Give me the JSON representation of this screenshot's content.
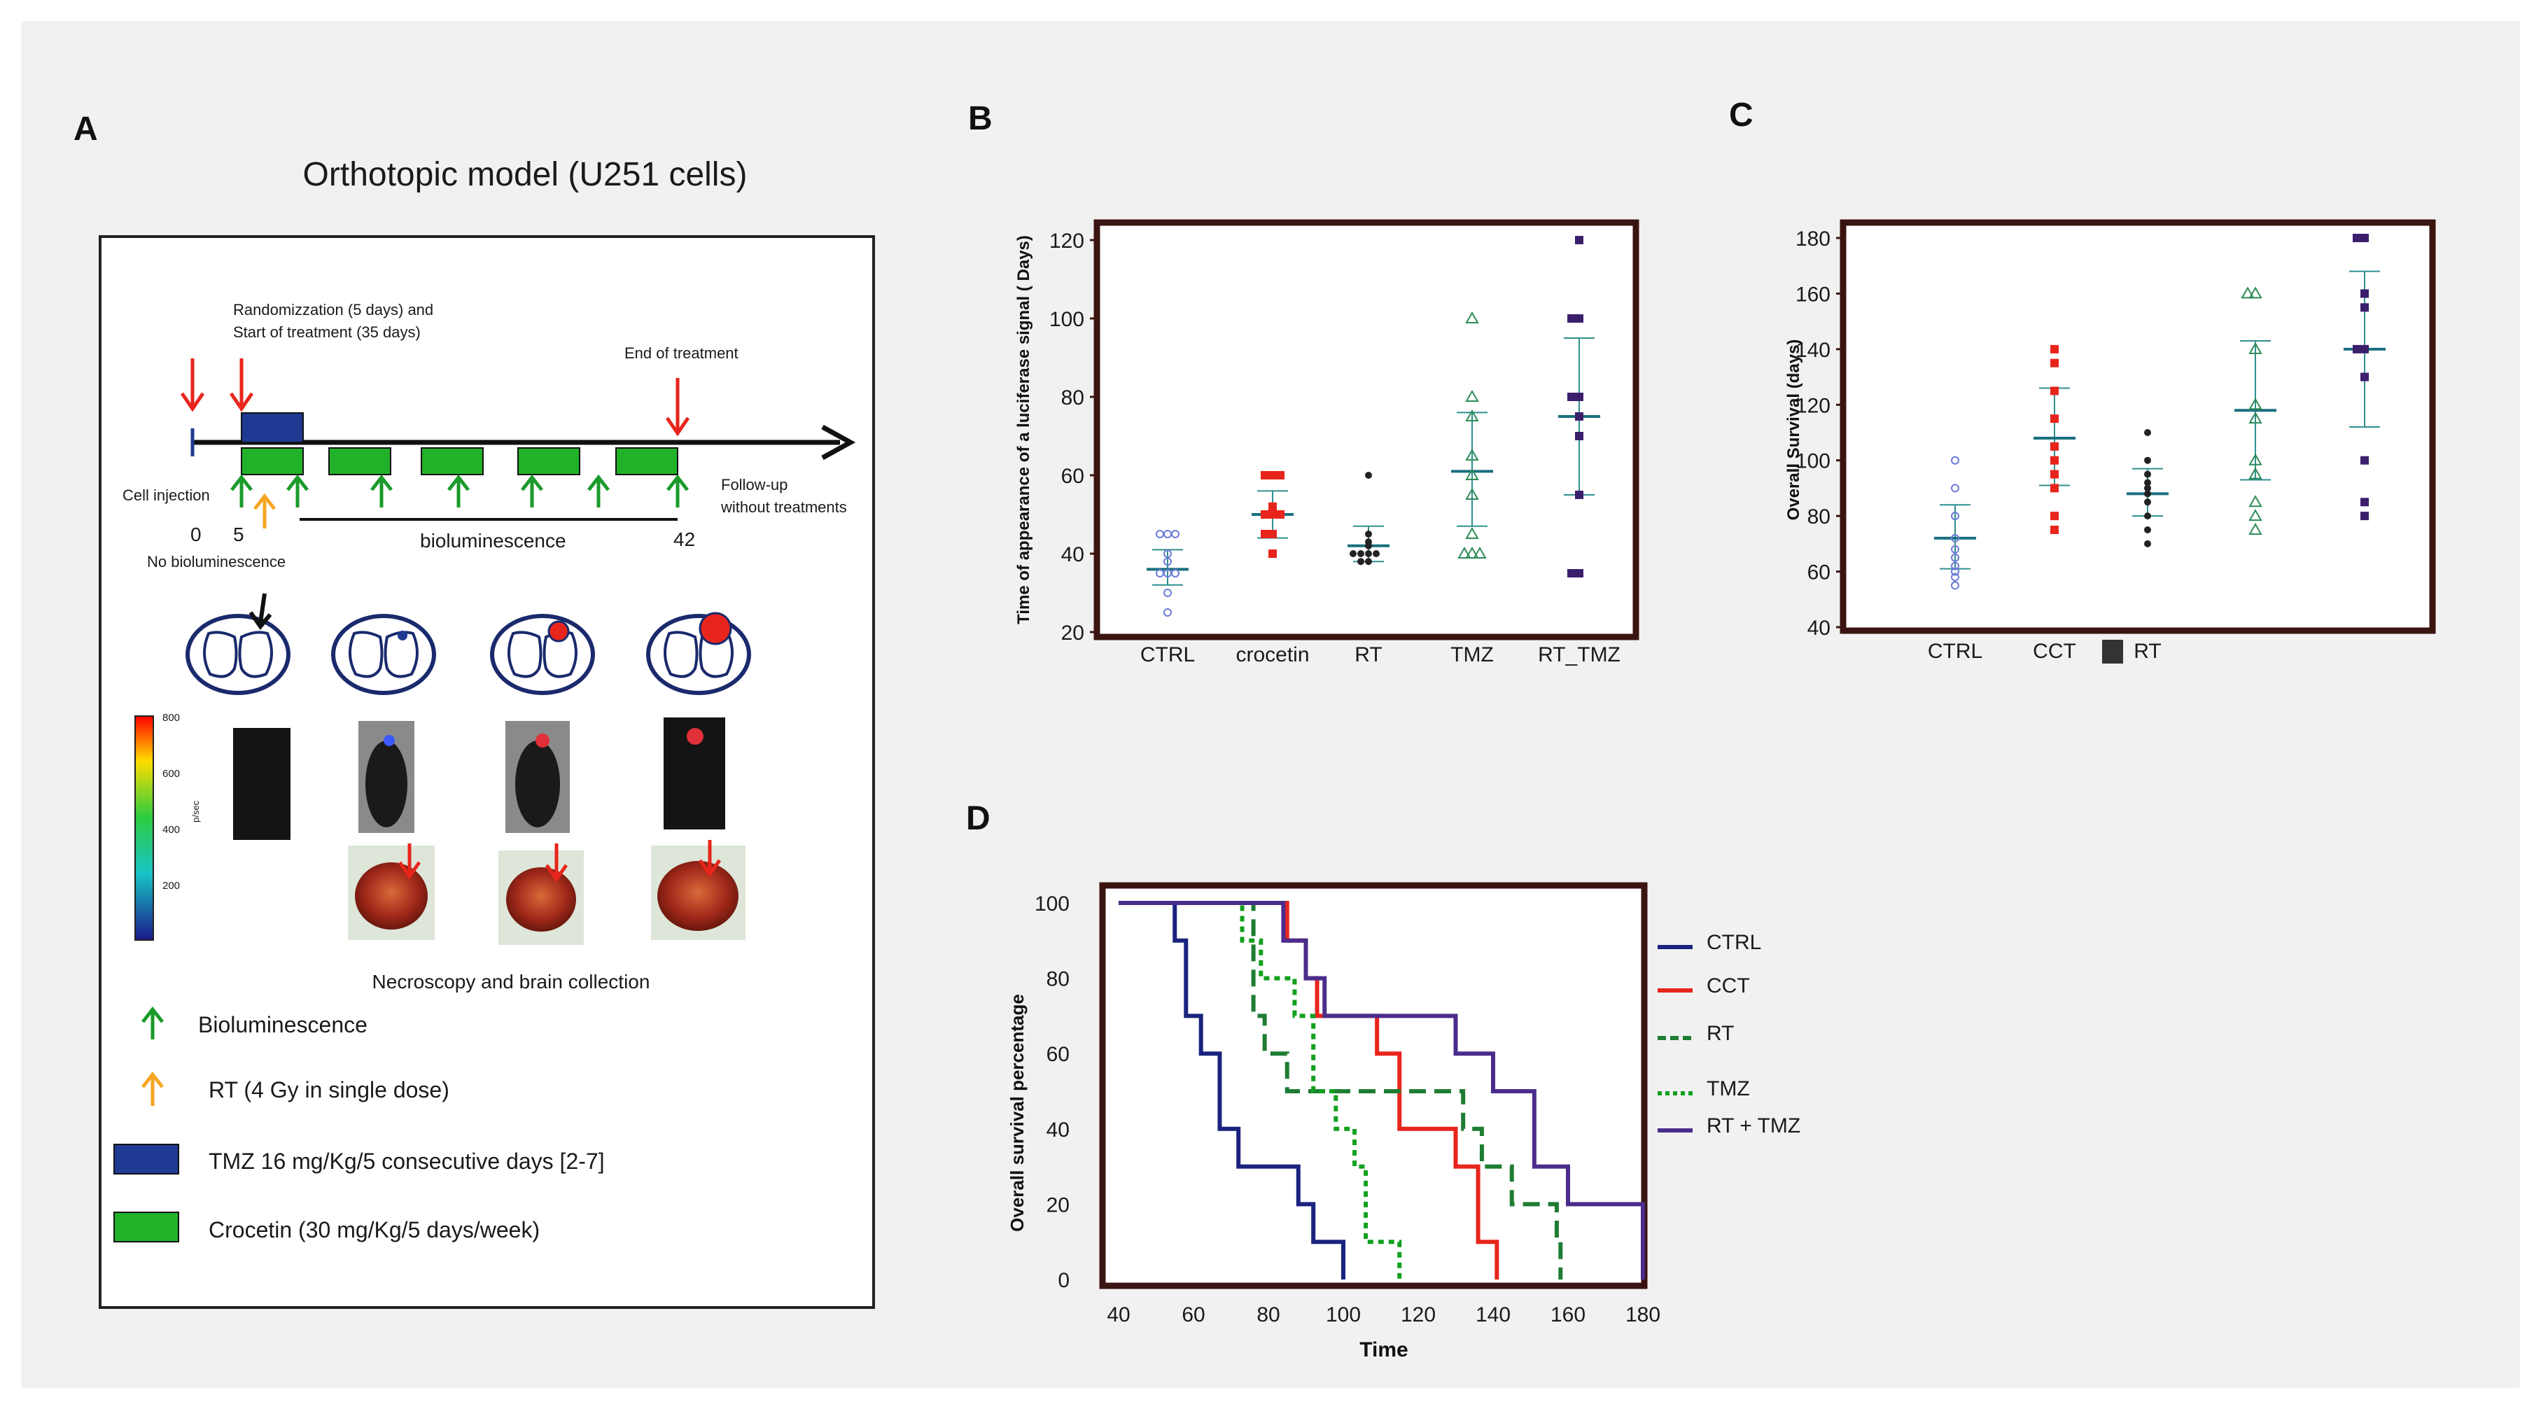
{
  "panel_letters": {
    "a": "A",
    "b": "B",
    "c": "C",
    "d": "D"
  },
  "panel_a": {
    "title": "Orthotopic model (U251 cells)",
    "randomization_label_line1": "Randomizzation  (5 days) and",
    "randomization_label_line2": "Start of treatment (35 days)",
    "end_label": "End of treatment",
    "cell_injection_label": "Cell injection",
    "day0": "0",
    "day5": "5",
    "day42": "42",
    "no_biolum_label": "No bioluminescence",
    "biolum_bar_label": "bioluminescence",
    "followup_line1": "Follow-up",
    "followup_line2": "without treatments",
    "colorbar_ticks": [
      "800",
      "600",
      "400",
      "200"
    ],
    "colorbar_unit": "p/sec",
    "necroscopy_label": "Necroscopy and brain collection",
    "legend": [
      {
        "label": "Bioluminescence"
      },
      {
        "label": "RT (4 Gy in single dose)"
      },
      {
        "label": "TMZ 16 mg/Kg/5 consecutive days [2-7]"
      },
      {
        "label": "Crocetin (30 mg/Kg/5 days/week)"
      }
    ],
    "colors": {
      "red": "#e8251c",
      "green": "#1a9a2a",
      "orange": "#f5a623",
      "blue": "#1f3a93",
      "box_green": "#22b22a"
    }
  },
  "chart_data": [
    {
      "id": "B",
      "type": "scatter",
      "categories": [
        "CTRL",
        "crocetin",
        "RT",
        "TMZ",
        "RT_TMZ"
      ],
      "ylabel": "Time of appearance of a  luciferase signal ( Days)",
      "xlabel": "",
      "ylim": [
        20,
        120
      ],
      "yticks": [
        20,
        40,
        60,
        80,
        100,
        120
      ],
      "points": [
        [
          45,
          45,
          45,
          40,
          38,
          35,
          35,
          35,
          30,
          25
        ],
        [
          60,
          60,
          60,
          52,
          50,
          50,
          50,
          45,
          45,
          40
        ],
        [
          60,
          45,
          43,
          42,
          40,
          40,
          40,
          40,
          38,
          38
        ],
        [
          100,
          80,
          75,
          65,
          60,
          55,
          45,
          40,
          40,
          40
        ],
        [
          120,
          100,
          100,
          80,
          80,
          75,
          70,
          55,
          35,
          35
        ]
      ],
      "mean": [
        36,
        50,
        42,
        61,
        75
      ],
      "upper": [
        41,
        56,
        47,
        76,
        95
      ],
      "lower": [
        32,
        44,
        38,
        47,
        55
      ],
      "marker_colors": [
        "#6b7bd6",
        "#e8251c",
        "#222222",
        "#2e8b57",
        "#3b1f6b"
      ]
    },
    {
      "id": "C",
      "type": "scatter",
      "categories": [
        "CTRL",
        "CCT",
        "RT",
        "",
        ""
      ],
      "ylabel": "Overall Survival (days)",
      "xlabel": "",
      "ylim": [
        40,
        180
      ],
      "yticks": [
        40,
        60,
        80,
        100,
        120,
        140,
        160,
        180
      ],
      "points": [
        [
          100,
          90,
          80,
          72,
          68,
          65,
          62,
          60,
          58,
          55
        ],
        [
          140,
          135,
          125,
          115,
          105,
          100,
          95,
          90,
          80,
          75
        ],
        [
          110,
          100,
          95,
          92,
          90,
          88,
          85,
          80,
          75,
          70
        ],
        [
          160,
          160,
          140,
          120,
          115,
          100,
          95,
          85,
          80,
          75
        ],
        [
          180,
          180,
          160,
          155,
          140,
          140,
          130,
          100,
          85,
          80
        ]
      ],
      "mean": [
        72,
        108,
        88,
        118,
        140
      ],
      "upper": [
        84,
        126,
        97,
        143,
        168
      ],
      "lower": [
        61,
        91,
        80,
        93,
        112
      ],
      "marker_colors": [
        "#6b7bd6",
        "#e8251c",
        "#222222",
        "#2e8b57",
        "#3b1f6b"
      ]
    },
    {
      "id": "D",
      "type": "line",
      "title": "",
      "xlabel": "Time",
      "ylabel": "Overall survival percentage",
      "xlim": [
        40,
        180
      ],
      "ylim": [
        0,
        100
      ],
      "xticks": [
        40,
        60,
        80,
        100,
        120,
        140,
        160,
        180
      ],
      "yticks": [
        0,
        20,
        40,
        60,
        80,
        100
      ],
      "series": [
        {
          "name": "CTRL",
          "color": "#1a237e",
          "dash": "",
          "x": [
            40,
            55,
            58,
            62,
            67,
            72,
            88,
            92,
            100
          ],
          "y": [
            100,
            90,
            70,
            60,
            40,
            30,
            20,
            10,
            0
          ]
        },
        {
          "name": "CCT",
          "color": "#e8251c",
          "dash": "",
          "x": [
            40,
            85,
            90,
            93,
            100,
            109,
            115,
            130,
            136,
            141
          ],
          "y": [
            100,
            90,
            80,
            70,
            70,
            60,
            40,
            30,
            10,
            0
          ]
        },
        {
          "name": "RT",
          "color": "#1e7d32",
          "dash": "24,12",
          "x": [
            40,
            76,
            79,
            85,
            101,
            132,
            137,
            145,
            157,
            158
          ],
          "y": [
            100,
            70,
            60,
            50,
            50,
            40,
            30,
            20,
            10,
            0
          ]
        },
        {
          "name": "TMZ",
          "color": "#12a01e",
          "dash": "8,7",
          "x": [
            40,
            73,
            78,
            87,
            92,
            98,
            103,
            106,
            115
          ],
          "y": [
            100,
            90,
            80,
            70,
            50,
            40,
            30,
            10,
            0
          ]
        },
        {
          "name": "RT + TMZ",
          "color": "#4b2c8a",
          "dash": "",
          "x": [
            40,
            84,
            90,
            95,
            98,
            130,
            140,
            151,
            160,
            180
          ],
          "y": [
            100,
            90,
            80,
            70,
            70,
            60,
            50,
            30,
            20,
            0
          ]
        }
      ]
    }
  ]
}
